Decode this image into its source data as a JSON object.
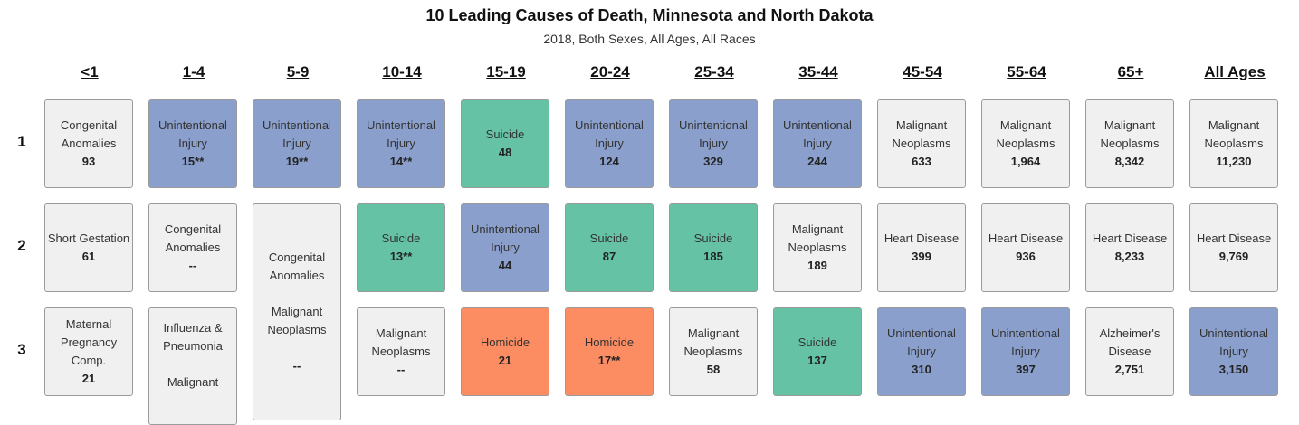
{
  "chart_data": {
    "type": "table",
    "title": "10 Leading Causes of Death, Minnesota and North Dakota",
    "subtitle": "2018, Both Sexes, All Ages, All Races",
    "columns": [
      "<1",
      "1-4",
      "5-9",
      "10-14",
      "15-19",
      "20-24",
      "25-34",
      "35-44",
      "45-54",
      "55-64",
      "65+",
      "All Ages"
    ],
    "ranks": [
      "1",
      "2",
      "3"
    ],
    "colors": {
      "Unintentional Injury": "#8a9fcc",
      "Suicide": "#66c2a5",
      "Homicide": "#fc8d62",
      "Other": "#f0f0f0"
    },
    "cells": [
      [
        {
          "cause": "Congenital Anomalies",
          "value": "93",
          "category": "Other"
        },
        {
          "cause": "Unintentional Injury",
          "value": "15**",
          "category": "Unintentional Injury"
        },
        {
          "cause": "Unintentional Injury",
          "value": "19**",
          "category": "Unintentional Injury"
        },
        {
          "cause": "Unintentional Injury",
          "value": "14**",
          "category": "Unintentional Injury"
        },
        {
          "cause": "Suicide",
          "value": "48",
          "category": "Suicide"
        },
        {
          "cause": "Unintentional Injury",
          "value": "124",
          "category": "Unintentional Injury"
        },
        {
          "cause": "Unintentional Injury",
          "value": "329",
          "category": "Unintentional Injury"
        },
        {
          "cause": "Unintentional Injury",
          "value": "244",
          "category": "Unintentional Injury"
        },
        {
          "cause": "Malignant Neoplasms",
          "value": "633",
          "category": "Other"
        },
        {
          "cause": "Malignant Neoplasms",
          "value": "1,964",
          "category": "Other"
        },
        {
          "cause": "Malignant Neoplasms",
          "value": "8,342",
          "category": "Other"
        },
        {
          "cause": "Malignant Neoplasms",
          "value": "11,230",
          "category": "Other"
        }
      ],
      [
        {
          "cause": "Short Gestation",
          "value": "61",
          "category": "Other"
        },
        {
          "cause": "Congenital Anomalies",
          "value": "--",
          "category": "Other"
        },
        {
          "cause": "Congenital Anomalies",
          "cause2": "Malignant Neoplasms",
          "value": "--",
          "category": "Other"
        },
        {
          "cause": "Suicide",
          "value": "13**",
          "category": "Suicide"
        },
        {
          "cause": "Unintentional Injury",
          "value": "44",
          "category": "Unintentional Injury"
        },
        {
          "cause": "Suicide",
          "value": "87",
          "category": "Suicide"
        },
        {
          "cause": "Suicide",
          "value": "185",
          "category": "Suicide"
        },
        {
          "cause": "Malignant Neoplasms",
          "value": "189",
          "category": "Other"
        },
        {
          "cause": "Heart Disease",
          "value": "399",
          "category": "Other"
        },
        {
          "cause": "Heart Disease",
          "value": "936",
          "category": "Other"
        },
        {
          "cause": "Heart Disease",
          "value": "8,233",
          "category": "Other"
        },
        {
          "cause": "Heart Disease",
          "value": "9,769",
          "category": "Other"
        }
      ],
      [
        {
          "cause": "Maternal Pregnancy Comp.",
          "value": "21",
          "category": "Other"
        },
        {
          "cause": "Influenza & Pneumonia",
          "cause2": "Malignant",
          "value": "",
          "category": "Other"
        },
        null,
        {
          "cause": "Malignant Neoplasms",
          "value": "--",
          "category": "Other"
        },
        {
          "cause": "Homicide",
          "value": "21",
          "category": "Homicide"
        },
        {
          "cause": "Homicide",
          "value": "17**",
          "category": "Homicide"
        },
        {
          "cause": "Malignant Neoplasms",
          "value": "58",
          "category": "Other"
        },
        {
          "cause": "Suicide",
          "value": "137",
          "category": "Suicide"
        },
        {
          "cause": "Unintentional Injury",
          "value": "310",
          "category": "Unintentional Injury"
        },
        {
          "cause": "Unintentional Injury",
          "value": "397",
          "category": "Unintentional Injury"
        },
        {
          "cause": "Alzheimer's Disease",
          "value": "2,751",
          "category": "Other"
        },
        {
          "cause": "Unintentional Injury",
          "value": "3,150",
          "category": "Unintentional Injury"
        }
      ]
    ]
  }
}
